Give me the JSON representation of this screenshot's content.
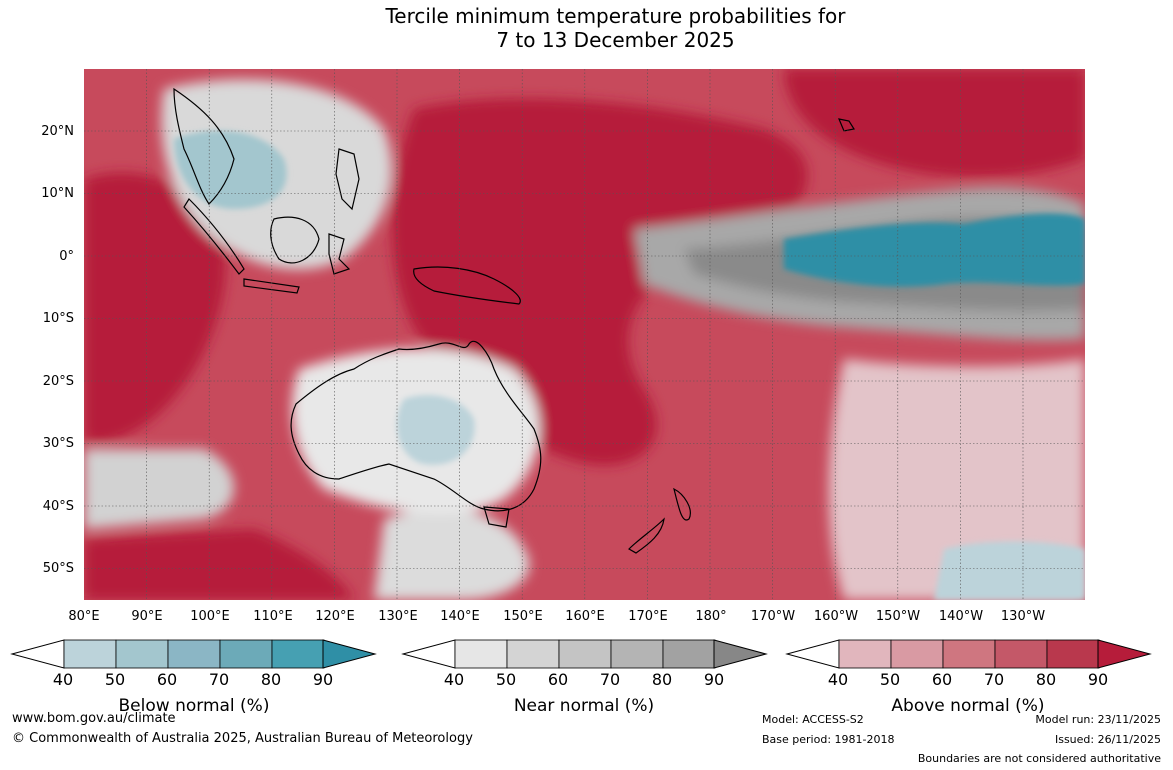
{
  "title_line1": "Tercile minimum temperature probabilities for",
  "title_line2": "7 to 13 December 2025",
  "lat_labels": [
    "20°N",
    "10°N",
    "0°",
    "10°S",
    "20°S",
    "30°S",
    "40°S",
    "50°S"
  ],
  "lon_labels": [
    "80°E",
    "90°E",
    "100°E",
    "110°E",
    "120°E",
    "130°E",
    "140°E",
    "150°E",
    "160°E",
    "170°E",
    "180°",
    "170°W",
    "160°W",
    "150°W",
    "140°W",
    "130°W"
  ],
  "legends": [
    {
      "title": "Below normal (%)",
      "ticks": [
        "40",
        "50",
        "60",
        "70",
        "80",
        "90"
      ],
      "colors": [
        "#bcd3da",
        "#a3c6ce",
        "#8bb6c5",
        "#6caab8",
        "#46a0b2",
        "#2f8fa6"
      ]
    },
    {
      "title": "Near normal (%)",
      "ticks": [
        "40",
        "50",
        "60",
        "70",
        "80",
        "90"
      ],
      "colors": [
        "#e6e6e6",
        "#d4d4d4",
        "#c4c4c4",
        "#b4b4b4",
        "#a2a2a2",
        "#878787"
      ]
    },
    {
      "title": "Above normal (%)",
      "ticks": [
        "40",
        "50",
        "60",
        "70",
        "80",
        "90"
      ],
      "colors": [
        "#e1b6bd",
        "#d99aa3",
        "#cf7680",
        "#c45868",
        "#b9384d",
        "#b61c3a"
      ]
    }
  ],
  "colors": {
    "land_outline": "#000000",
    "grid": "#555555",
    "base_red": "#c74a5c",
    "deep_red": "#b61c3a",
    "grey": "#8a8a8a",
    "teal": "#2f8fa6"
  },
  "footer": {
    "website": "www.bom.gov.au/climate",
    "copyright": "© Commonwealth of Australia 2025, Australian Bureau of Meteorology",
    "model": "Model: ACCESS-S2",
    "base_period": "Base period: 1981-2018",
    "model_run": "Model run: 23/11/2025",
    "issued": "Issued: 26/11/2025",
    "disclaimer": "Boundaries are not considered authoritative"
  }
}
